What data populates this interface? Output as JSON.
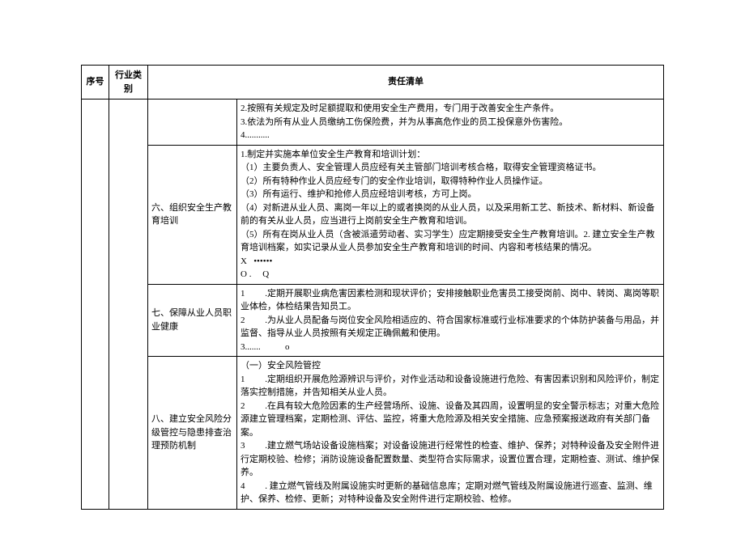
{
  "headers": {
    "seq": "序号",
    "category": "行业类别",
    "list": "责任清单"
  },
  "rows": [
    {
      "sub": "",
      "content": "2.按照有关规定及时足额提取和使用安全生产费用，专门用于改善安全生产条件。\n3.依法为所有从业人员缴纳工伤保险费，并为从事高危作业的员工投保意外伤害险。\n4..........."
    },
    {
      "sub": "六、组织安全生产教育培训",
      "content": "1.制定并实施本单位安全生产教育和培训计划：\n（1）主要负责人、安全管理人员应经有关主管部门培训考核合格，取得安全管理资格证书。\n（2）所有特种作业人员应经专门的安全作业培训，取得特种作业人员操作证。\n（3）所有运行、维护和抢修人员应经培训考核，方可上岗。\n（4）对新进从业人员、离岗一年以上的或者换岗的从业人员，以及采用新工艺、新技术、新材料、新设备前的有关从业人员，应当进行上岗前安全生产教育和培训。\n（5）所有在岗从业人员（含被派遣劳动者、实习学生）应定期接受安全生产教育培训。2. 建立安全生产教育培训档案，如实记录从业人员参加安全生产教育和培训的时间、内容和考核结果的情况。\nX   ••••••\nO .     Q"
    },
    {
      "sub": "七、保障从业人员职业健康",
      "content": "1         .定期开展职业病危害因素检测和现状评价；安排接触职业危害员工接受岗前、岗中、转岗、离岗等职业体检，体检结果告知员工。\n2         .为从业人员配备与岗位安全风险相适应的、符合国家标准或行业标准要求的个体防护装备与用品，并监督、指导从业人员按照有关规定正确佩戴和使用。\n3.......           o"
    },
    {
      "sub": "八、建立安全风险分级管控与隐患排查治理预防机制",
      "content": "（一）安全风险管控\n1         .定期组织开展危险源辨识与评价，对作业活动和设备设施进行危险、有害因素识别和风险评价，制定落实控制措施，并告知相关从业人员。\n2         .在具有较大危险因素的生产经营场所、设施、设备及其四周，设置明显的安全警示标志；对重大危险源建立管理档案，定期检测、评估、监控，将重大危险源及相关安全措施、应急预案报送政府有关部门备案。\n3         .建立燃气场站设备设施档案；对设备设施进行经常性的检查、维护、保养；对特种设备及安全附件进行定期校验、检修；消防设施设备配置数量、类型符合实际需求，设置位置合理，定期检查、测试、维护保养。\n4         . 建立燃气管线及附属设施实时更新的基础信息库；定期对燃气管线及附属设施进行巡查、监测、维护、保养、检修、更新；对特种设备及安全附件进行定期校验、检修。"
    }
  ]
}
